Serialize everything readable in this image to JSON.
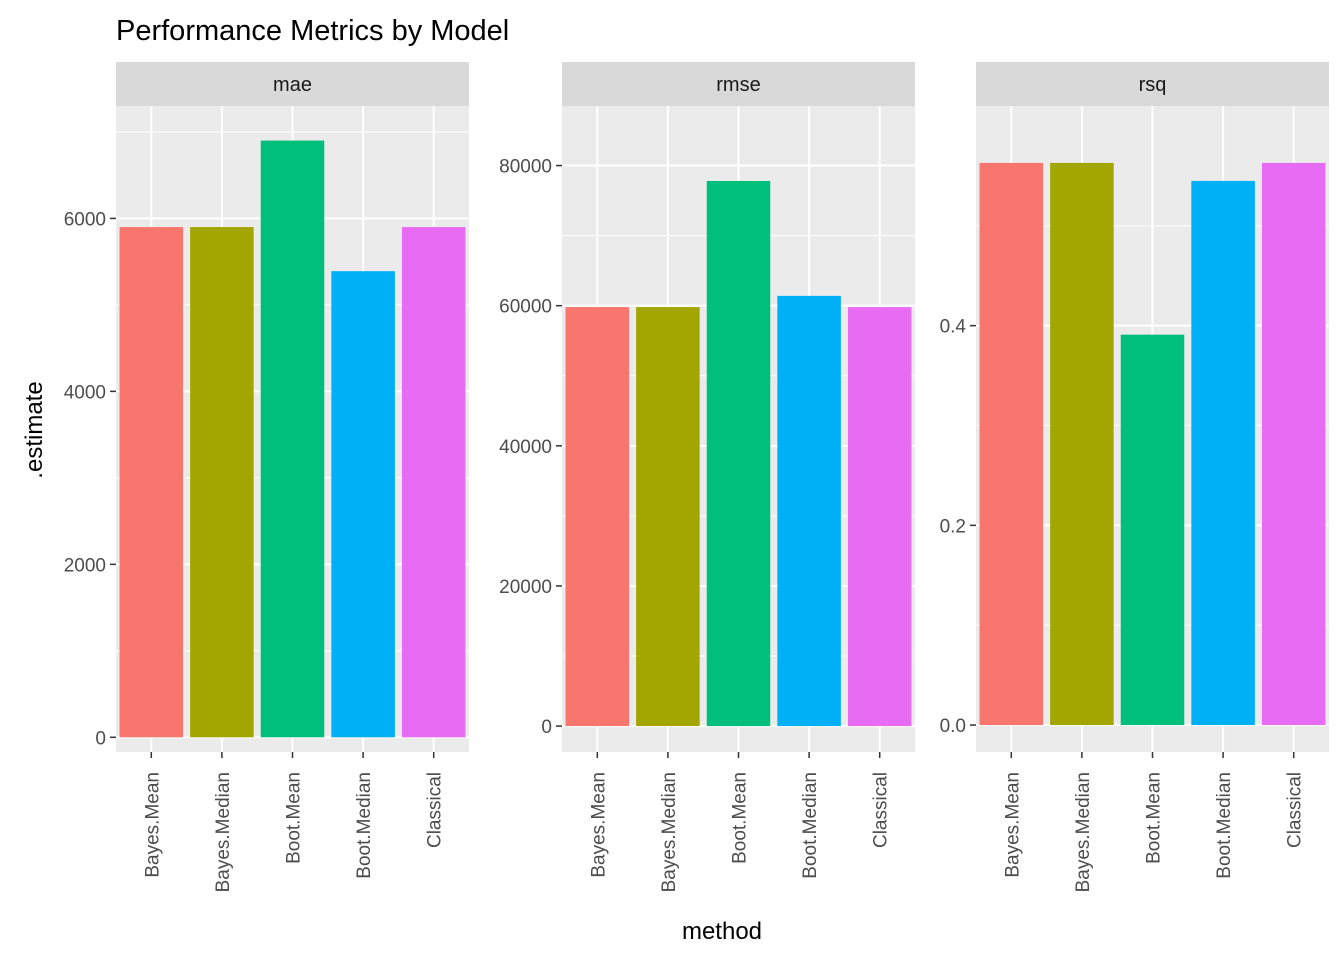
{
  "chart_data": {
    "type": "bar",
    "title": "Performance Metrics by Model",
    "xlabel": "method",
    "ylabel": ".estimate",
    "grid": true,
    "legend": "none",
    "categories": [
      "Bayes.Mean",
      "Bayes.Median",
      "Boot.Mean",
      "Boot.Median",
      "Classical"
    ],
    "colors": [
      "#F8766D",
      "#A3A500",
      "#00BF7D",
      "#00B0F6",
      "#E76BF3"
    ],
    "panel_background": "#EBEBEB",
    "strip_background": "#D9D9D9",
    "facets": [
      {
        "name": "mae",
        "values": [
          5900,
          5900,
          6900,
          5390,
          5900
        ],
        "ylim": [
          -170,
          7300
        ],
        "yticks": [
          0,
          2000,
          4000,
          6000
        ],
        "ytick_labels": [
          "0",
          "2000",
          "4000",
          "6000"
        ]
      },
      {
        "name": "rmse",
        "values": [
          59800,
          59800,
          77800,
          61400,
          59800
        ],
        "ylim": [
          -3700,
          88500
        ],
        "yticks": [
          0,
          20000,
          40000,
          60000,
          80000
        ],
        "ytick_labels": [
          "0",
          "20000",
          "40000",
          "60000",
          "80000"
        ]
      },
      {
        "name": "rsq",
        "values": [
          0.563,
          0.563,
          0.391,
          0.545,
          0.563
        ],
        "ylim": [
          -0.027,
          0.62
        ],
        "yticks": [
          0.0,
          0.2,
          0.4
        ],
        "ytick_labels": [
          "0.0",
          "0.2",
          "0.4"
        ]
      }
    ]
  }
}
